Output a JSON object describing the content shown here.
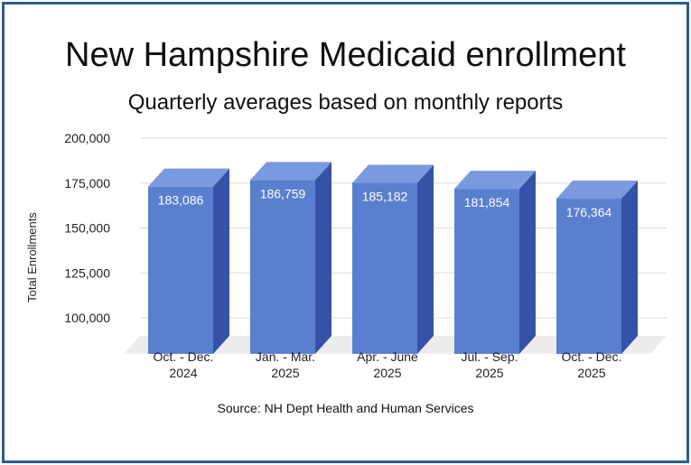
{
  "chart_data": {
    "type": "bar",
    "title": "New Hampshire Medicaid enrollment",
    "subtitle": "Quarterly averages based on monthly reports",
    "ylabel": "Total Enrollments",
    "xlabel": "",
    "source": "Source: NH Dept Health and Human Services",
    "categories": [
      [
        "Oct. - Dec.",
        "2024"
      ],
      [
        "Jan. - Mar.",
        "2025"
      ],
      [
        "Apr. - June",
        "2025"
      ],
      [
        "Jul. - Sep.",
        "2025"
      ],
      [
        "Oct. - Dec.",
        "2025"
      ]
    ],
    "values": [
      183086,
      186759,
      185182,
      181854,
      176364
    ],
    "value_labels": [
      "183,086",
      "186,759",
      "185,182",
      "181,854",
      "176,364"
    ],
    "ylim": [
      90000,
      200000
    ],
    "yticks": [
      100000,
      125000,
      150000,
      175000,
      200000
    ],
    "ytick_labels": [
      "100,000",
      "125,000",
      "150,000",
      "175,000",
      "200,000"
    ],
    "grid": true,
    "legend": "none",
    "colors": {
      "bar_front": "#5a7fcf",
      "bar_side": "#3552a8",
      "bar_top": "#7a9ae0",
      "grid": "#d9d9d9",
      "floor": "#ececec",
      "frame": "#2c5c8f"
    }
  }
}
